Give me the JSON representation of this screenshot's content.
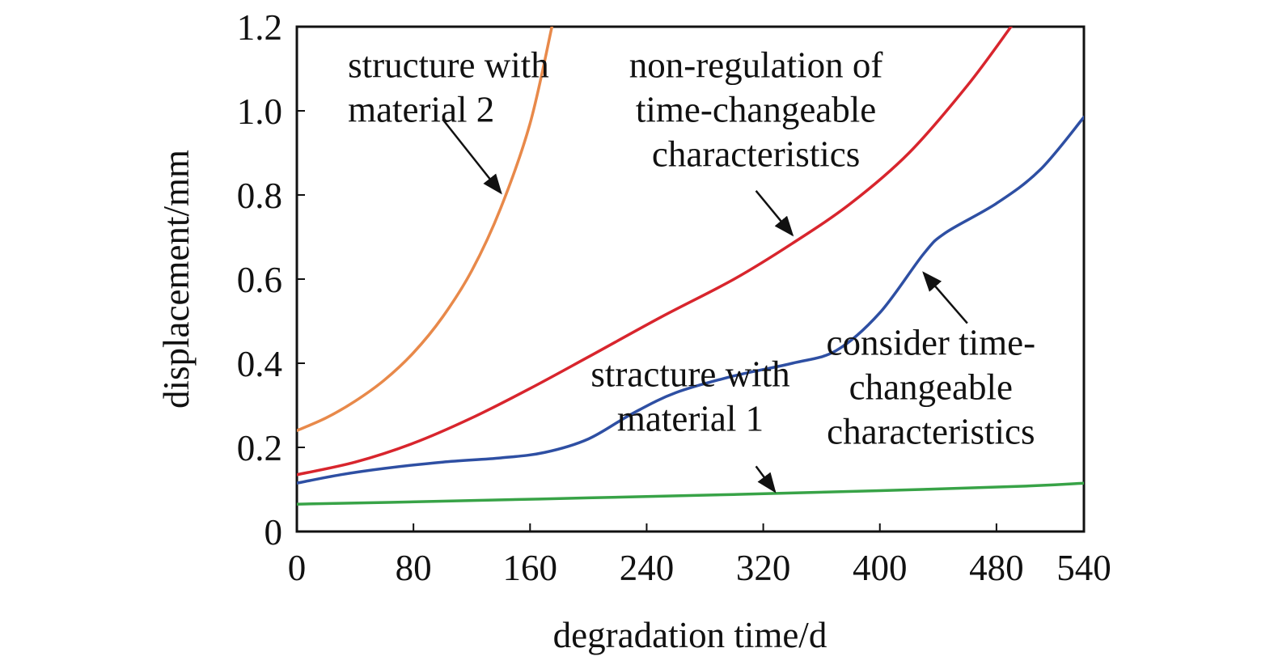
{
  "chart_data": {
    "type": "line",
    "xlabel": "degradation time/d",
    "ylabel": "displacement/mm",
    "xlim": [
      0,
      540
    ],
    "ylim": [
      0,
      1.2
    ],
    "xticks": [
      0,
      80,
      160,
      240,
      320,
      400,
      480,
      540
    ],
    "xtick_labels": [
      "0",
      "80",
      "160",
      "240",
      "320",
      "400",
      "480",
      "540"
    ],
    "yticks": [
      0,
      0.2,
      0.4,
      0.6,
      0.8,
      1.0,
      1.2
    ],
    "ytick_labels": [
      "0",
      "0.2",
      "0.4",
      "0.6",
      "0.8",
      "1.0",
      "1.2"
    ],
    "grid": false,
    "legend": "none",
    "series": [
      {
        "color": "#e8894a",
        "x": [
          0,
          20,
          40,
          60,
          80,
          100,
          120,
          140,
          160,
          175
        ],
        "y": [
          0.24,
          0.27,
          0.31,
          0.36,
          0.425,
          0.51,
          0.62,
          0.77,
          0.97,
          1.2
        ]
      },
      {
        "color": "#d8252d",
        "x": [
          0,
          40,
          80,
          120,
          160,
          200,
          250,
          300,
          340,
          380,
          420,
          460,
          490
        ],
        "y": [
          0.135,
          0.165,
          0.21,
          0.27,
          0.34,
          0.415,
          0.51,
          0.6,
          0.685,
          0.78,
          0.9,
          1.06,
          1.2
        ]
      },
      {
        "color": "#2e4fa3",
        "x": [
          0,
          30,
          60,
          100,
          140,
          170,
          200,
          230,
          260,
          300,
          340,
          370,
          400,
          430,
          445,
          480,
          510,
          540
        ],
        "y": [
          0.115,
          0.135,
          0.15,
          0.165,
          0.175,
          0.188,
          0.22,
          0.28,
          0.33,
          0.37,
          0.4,
          0.43,
          0.52,
          0.66,
          0.71,
          0.78,
          0.86,
          0.985
        ]
      },
      {
        "color": "#38a347",
        "x": [
          0,
          100,
          200,
          300,
          400,
          500,
          540
        ],
        "y": [
          0.065,
          0.072,
          0.08,
          0.088,
          0.097,
          0.108,
          0.115
        ]
      }
    ],
    "annotations": [
      {
        "lines": [
          "structure with",
          "material 2"
        ],
        "text_at": [
          35,
          1.08
        ],
        "align": "start",
        "arrow_from": [
          100,
          0.98
        ],
        "arrow_to": [
          140,
          0.805
        ]
      },
      {
        "lines": [
          "non-regulation of",
          "time-changeable",
          "characteristics"
        ],
        "text_at": [
          315,
          1.08
        ],
        "align": "middle",
        "arrow_from": [
          315,
          0.81
        ],
        "arrow_to": [
          340,
          0.705
        ]
      },
      {
        "lines": [
          "consider time-",
          "changeable",
          "characteristics"
        ],
        "text_at": [
          435,
          0.42
        ],
        "align": "middle",
        "arrow_from": [
          460,
          0.495
        ],
        "arrow_to": [
          430,
          0.615
        ]
      },
      {
        "lines": [
          "stracture with",
          "material 1"
        ],
        "text_at": [
          270,
          0.345
        ],
        "align": "middle",
        "arrow_from": [
          315,
          0.155
        ],
        "arrow_to": [
          328,
          0.095
        ]
      }
    ]
  }
}
